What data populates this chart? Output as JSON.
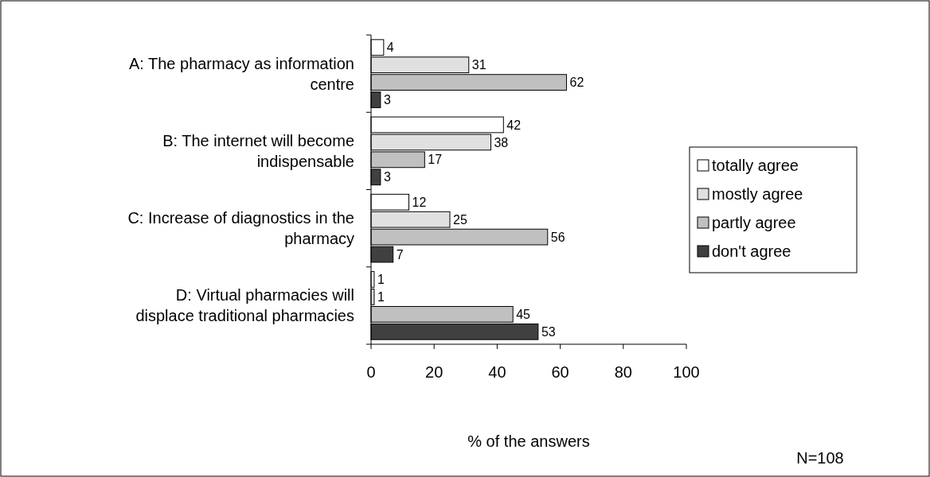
{
  "chart_data": {
    "type": "bar",
    "orientation": "horizontal",
    "xlabel": "% of the answers",
    "categories": [
      "A: The pharmacy as information centre",
      "B: The internet will become indispensable",
      "C: Increase of diagnostics in the pharmacy",
      "D: Virtual pharmacies will displace traditional pharmacies"
    ],
    "series": [
      {
        "name": "totally agree",
        "color": "#ffffff",
        "values": [
          4,
          42,
          12,
          1
        ]
      },
      {
        "name": "mostly agree",
        "color": "#e0e0e0",
        "values": [
          31,
          38,
          25,
          1
        ]
      },
      {
        "name": "partly agree",
        "color": "#c0c0c0",
        "values": [
          62,
          17,
          56,
          45
        ]
      },
      {
        "name": "don't agree",
        "color": "#404040",
        "values": [
          3,
          3,
          7,
          53
        ]
      }
    ],
    "xlim": [
      0,
      100
    ],
    "xticks": [
      0,
      20,
      40,
      60,
      80,
      100
    ],
    "data_labels": true,
    "legend": "right",
    "grid": false,
    "annotations": [
      "N=108"
    ]
  }
}
